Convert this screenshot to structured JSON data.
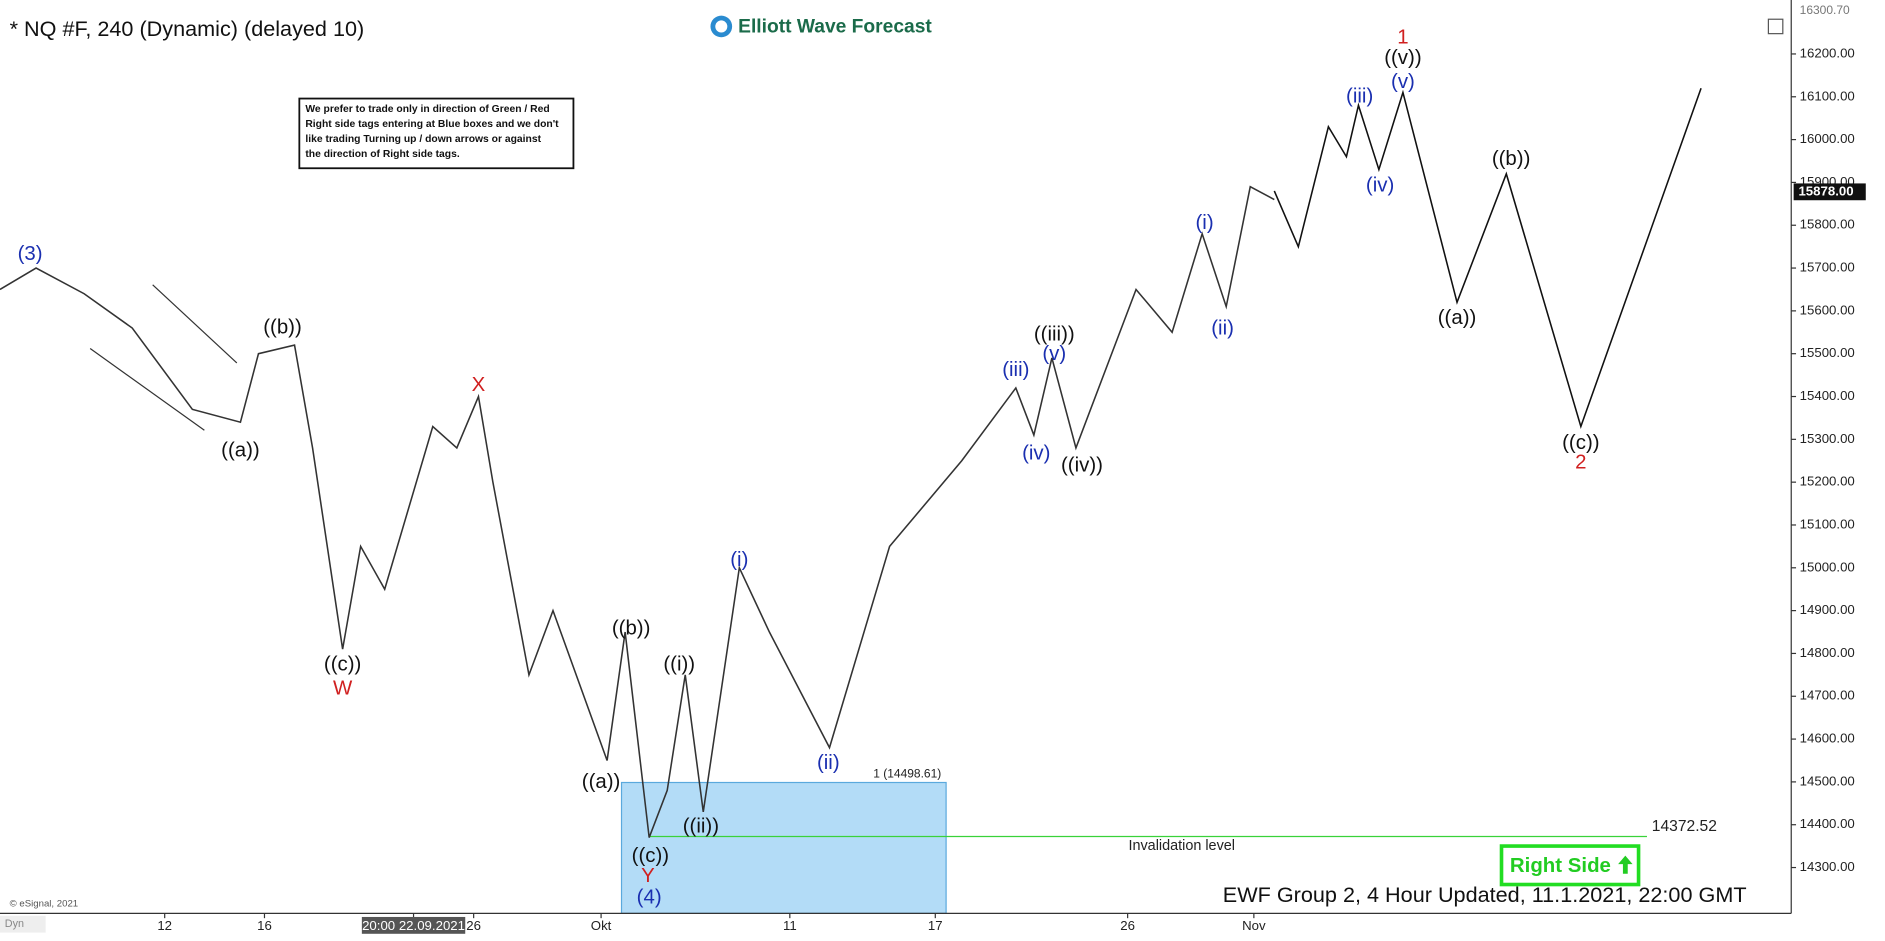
{
  "chart_data": {
    "type": "line",
    "title": "* NQ #F, 240 (Dynamic) (delayed 10)",
    "logo": "Elliott Wave Forecast",
    "footer": "EWF Group 2, 4 Hour Updated, 11.1.2021, 22:00 GMT",
    "copyright": "© eSignal, 2021",
    "corner": "Dyn",
    "button": "Right Side",
    "note": [
      "We prefer to trade only in direction of Green / Red",
      "Right side tags entering at Blue boxes and we don't",
      "like trading Turning up / down arrows or against",
      "the direction of Right side tags."
    ],
    "xlim": [
      0,
      1490
    ],
    "ylim": [
      14193,
      16326
    ],
    "xticks": [
      {
        "value": 137,
        "label": "12"
      },
      {
        "value": 220,
        "label": "16"
      },
      {
        "value": 344,
        "label": "20:00 22.09.2021"
      },
      {
        "value": 394,
        "label": "26"
      },
      {
        "value": 500,
        "label": "Okt"
      },
      {
        "value": 657,
        "label": "11"
      },
      {
        "value": 778,
        "label": "17"
      },
      {
        "value": 938,
        "label": "26"
      },
      {
        "value": 1043,
        "label": "Nov"
      }
    ],
    "yticks": [
      {
        "value": 14300,
        "label": "14300.00"
      },
      {
        "value": 14400,
        "label": "14400.00"
      },
      {
        "value": 14500,
        "label": "14500.00"
      },
      {
        "value": 14600,
        "label": "14600.00"
      },
      {
        "value": 14700,
        "label": "14700.00"
      },
      {
        "value": 14800,
        "label": "14800.00"
      },
      {
        "value": 14900,
        "label": "14900.00"
      },
      {
        "value": 15000,
        "label": "15000.00"
      },
      {
        "value": 15100,
        "label": "15100.00"
      },
      {
        "value": 15200,
        "label": "15200.00"
      },
      {
        "value": 15300,
        "label": "15300.00"
      },
      {
        "value": 15400,
        "label": "15400.00"
      },
      {
        "value": 15500,
        "label": "15500.00"
      },
      {
        "value": 15600,
        "label": "15600.00"
      },
      {
        "value": 15700,
        "label": "15700.00"
      },
      {
        "value": 15800,
        "label": "15800.00"
      },
      {
        "value": 15900,
        "label": "15900.00"
      },
      {
        "value": 16000,
        "label": "16000.00"
      },
      {
        "value": 16100,
        "label": "16100.00"
      },
      {
        "value": 16200,
        "label": "16200.00"
      }
    ],
    "top_price": {
      "value": 16300.7,
      "label": "16300.70"
    },
    "last_price": {
      "value": 15878,
      "label": "15878.00"
    },
    "series": [
      {
        "color": "#333333",
        "x": [
          0,
          30,
          70,
          110,
          160,
          200,
          215,
          245,
          260,
          285,
          300,
          320,
          360,
          380,
          398,
          410,
          440,
          460,
          505,
          520,
          540,
          555,
          570,
          585,
          615,
          640,
          690,
          740,
          800,
          845,
          860,
          875,
          895,
          945,
          975,
          1000,
          1020,
          1040,
          1060
        ],
        "values": [
          15650,
          15700,
          15640,
          15560,
          15370,
          15340,
          15500,
          15520,
          15280,
          14810,
          15050,
          14950,
          15330,
          15280,
          15400,
          15200,
          14750,
          14900,
          14550,
          14850,
          14370,
          14480,
          14750,
          14430,
          15000,
          14850,
          14580,
          15050,
          15250,
          15420,
          15310,
          15490,
          15280,
          15650,
          15550,
          15780,
          15610,
          15890,
          15860
        ]
      },
      {
        "color": "#111111",
        "x": [
          1060,
          1080,
          1105,
          1120,
          1130,
          1147,
          1167,
          1212,
          1253,
          1315,
          1415
        ],
        "values": [
          15880,
          15750,
          16030,
          15960,
          16080,
          15930,
          16110,
          15620,
          15920,
          15330,
          16120
        ]
      }
    ],
    "box": {
      "x": [
        517,
        787
      ],
      "top": 14498.61,
      "label": "1 (14498.61)",
      "color": "#b3dcf7"
    },
    "invalidation": {
      "x": [
        540,
        1370
      ],
      "value": 14372.52,
      "text": "Invalidation level",
      "color": "#3ad23a"
    },
    "annotations": [
      {
        "text": "(3)",
        "x": 25,
        "y": 15731,
        "color": "#1a2fb0"
      },
      {
        "text": "((a))",
        "x": 200,
        "y": 15273,
        "color": "#111111"
      },
      {
        "text": "((b))",
        "x": 235,
        "y": 15560,
        "color": "#111111"
      },
      {
        "text": "((c))",
        "x": 285,
        "y": 14773,
        "color": "#111111"
      },
      {
        "text": "W",
        "x": 285,
        "y": 14717,
        "color": "#d02020"
      },
      {
        "text": "X",
        "x": 398,
        "y": 15425,
        "color": "#d02020"
      },
      {
        "text": "((a))",
        "x": 500,
        "y": 14498,
        "color": "#111111"
      },
      {
        "text": "((b))",
        "x": 525,
        "y": 14857,
        "color": "#111111"
      },
      {
        "text": "((i))",
        "x": 565,
        "y": 14773,
        "color": "#111111"
      },
      {
        "text": "((ii))",
        "x": 583,
        "y": 14394,
        "color": "#111111"
      },
      {
        "text": "((c))",
        "x": 541,
        "y": 14326,
        "color": "#111111"
      },
      {
        "text": "Y",
        "x": 539,
        "y": 14279,
        "color": "#d02020"
      },
      {
        "text": "(4)",
        "x": 540,
        "y": 14228,
        "color": "#1a2fb0"
      },
      {
        "text": "(i)",
        "x": 615,
        "y": 15017,
        "color": "#1a2fb0"
      },
      {
        "text": "(ii)",
        "x": 689,
        "y": 14543,
        "color": "#1a2fb0"
      },
      {
        "text": "(iii)",
        "x": 845,
        "y": 15461,
        "color": "#1a2fb0"
      },
      {
        "text": "(iv)",
        "x": 862,
        "y": 15265,
        "color": "#1a2fb0"
      },
      {
        "text": "(v)",
        "x": 877,
        "y": 15498,
        "color": "#1a2fb0"
      },
      {
        "text": "((iii))",
        "x": 877,
        "y": 15543,
        "color": "#111111"
      },
      {
        "text": "((iv))",
        "x": 900,
        "y": 15237,
        "color": "#111111"
      },
      {
        "text": "(i)",
        "x": 1002,
        "y": 15804,
        "color": "#1a2fb0"
      },
      {
        "text": "(ii)",
        "x": 1017,
        "y": 15557,
        "color": "#1a2fb0"
      },
      {
        "text": "(iii)",
        "x": 1131,
        "y": 16099,
        "color": "#1a2fb0"
      },
      {
        "text": "(iv)",
        "x": 1148,
        "y": 15891,
        "color": "#1a2fb0"
      },
      {
        "text": "(v)",
        "x": 1167,
        "y": 16133,
        "color": "#1a2fb0"
      },
      {
        "text": "((v))",
        "x": 1167,
        "y": 16189,
        "color": "#111111"
      },
      {
        "text": "1",
        "x": 1167,
        "y": 16237,
        "color": "#d02020"
      },
      {
        "text": "((a))",
        "x": 1212,
        "y": 15582,
        "color": "#111111"
      },
      {
        "text": "((b))",
        "x": 1257,
        "y": 15953,
        "color": "#111111"
      },
      {
        "text": "((c))",
        "x": 1315,
        "y": 15290,
        "color": "#111111"
      },
      {
        "text": "2",
        "x": 1315,
        "y": 15245,
        "color": "#d02020"
      }
    ]
  }
}
